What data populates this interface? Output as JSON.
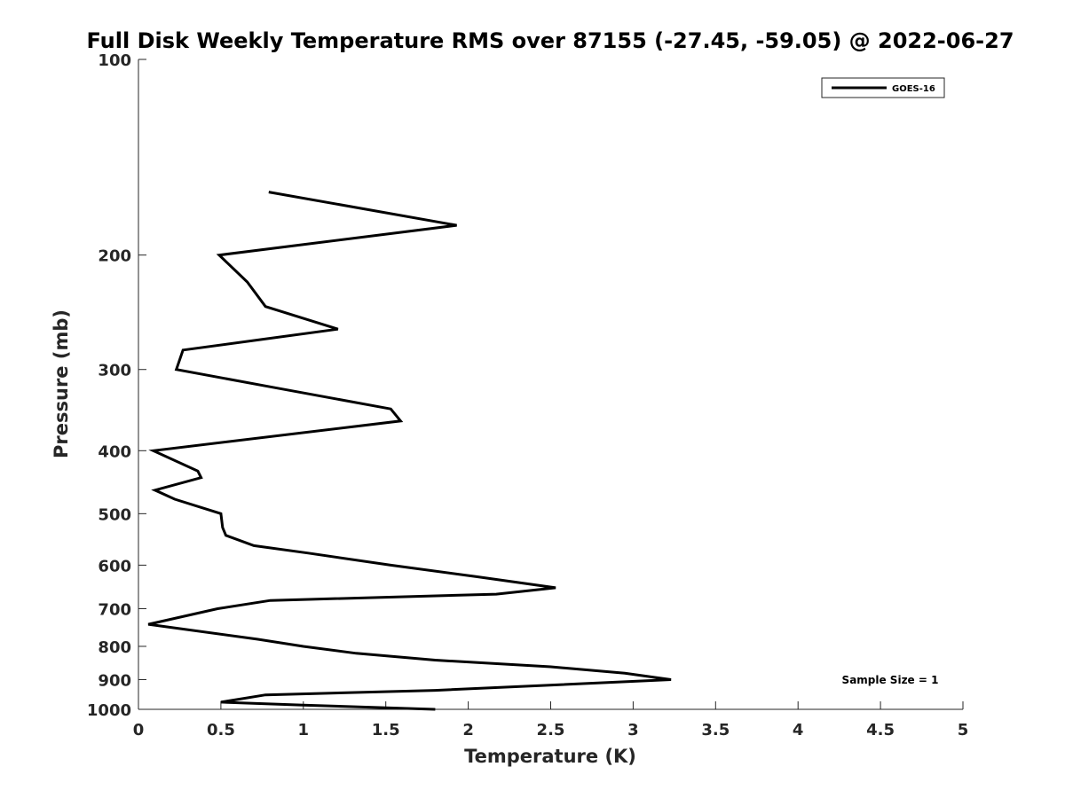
{
  "chart_data": {
    "type": "line",
    "title": "Full Disk Weekly Temperature RMS over 87155 (-27.45, -59.05) @ 2022-06-27",
    "xlabel": "Temperature (K)",
    "ylabel": "Pressure (mb)",
    "xlim": [
      0,
      5
    ],
    "ylim": [
      100,
      1000
    ],
    "y_scale": "log",
    "y_reversed": true,
    "x_ticks": [
      0,
      0.5,
      1,
      1.5,
      2,
      2.5,
      3,
      3.5,
      4,
      4.5,
      5
    ],
    "x_tick_labels": [
      "0",
      "0.5",
      "1",
      "1.5",
      "2",
      "2.5",
      "3",
      "3.5",
      "4",
      "4.5",
      "5"
    ],
    "y_ticks": [
      100,
      200,
      300,
      400,
      500,
      600,
      700,
      800,
      900,
      1000
    ],
    "y_tick_labels": [
      "100",
      "200",
      "300",
      "400",
      "500",
      "600",
      "700",
      "800",
      "900",
      "1000"
    ],
    "grid": false,
    "legend_position": "top-right",
    "annotation": "Sample Size = 1",
    "series": [
      {
        "name": "GOES-16",
        "color": "#000000",
        "points": [
          {
            "x": 0.79,
            "p": 160
          },
          {
            "x": 1.93,
            "p": 180
          },
          {
            "x": 0.49,
            "p": 200
          },
          {
            "x": 0.66,
            "p": 220
          },
          {
            "x": 0.77,
            "p": 240
          },
          {
            "x": 1.21,
            "p": 260
          },
          {
            "x": 0.27,
            "p": 280
          },
          {
            "x": 0.23,
            "p": 300
          },
          {
            "x": 0.83,
            "p": 320
          },
          {
            "x": 1.53,
            "p": 345
          },
          {
            "x": 1.59,
            "p": 360
          },
          {
            "x": 0.09,
            "p": 400
          },
          {
            "x": 0.36,
            "p": 430
          },
          {
            "x": 0.38,
            "p": 440
          },
          {
            "x": 0.1,
            "p": 460
          },
          {
            "x": 0.22,
            "p": 475
          },
          {
            "x": 0.5,
            "p": 500
          },
          {
            "x": 0.51,
            "p": 525
          },
          {
            "x": 0.53,
            "p": 540
          },
          {
            "x": 0.7,
            "p": 560
          },
          {
            "x": 1.03,
            "p": 575
          },
          {
            "x": 1.53,
            "p": 600
          },
          {
            "x": 2.05,
            "p": 625
          },
          {
            "x": 2.53,
            "p": 650
          },
          {
            "x": 2.17,
            "p": 665
          },
          {
            "x": 0.8,
            "p": 680
          },
          {
            "x": 0.48,
            "p": 700
          },
          {
            "x": 0.06,
            "p": 740
          },
          {
            "x": 0.72,
            "p": 780
          },
          {
            "x": 1.0,
            "p": 800
          },
          {
            "x": 1.32,
            "p": 820
          },
          {
            "x": 1.8,
            "p": 840
          },
          {
            "x": 2.5,
            "p": 860
          },
          {
            "x": 2.95,
            "p": 880
          },
          {
            "x": 3.23,
            "p": 900
          },
          {
            "x": 1.8,
            "p": 935
          },
          {
            "x": 0.77,
            "p": 950
          },
          {
            "x": 0.5,
            "p": 975
          },
          {
            "x": 1.0,
            "p": 985
          },
          {
            "x": 1.8,
            "p": 1000
          }
        ]
      }
    ]
  }
}
